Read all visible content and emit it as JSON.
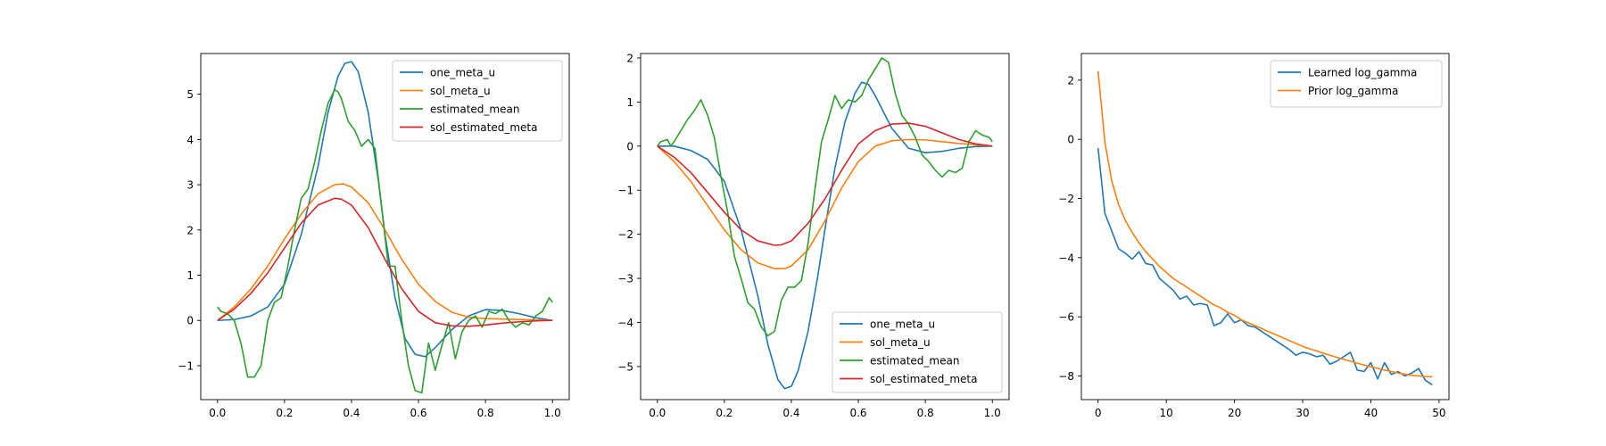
{
  "colors": {
    "blue": "#1f77b4",
    "orange": "#ff7f0e",
    "green": "#2ca02c",
    "red": "#d62728"
  },
  "chart_data": [
    {
      "type": "line",
      "title": "",
      "xlabel": "",
      "ylabel": "",
      "xlim": [
        -0.05,
        1.05
      ],
      "ylim": [
        -1.75,
        5.9
      ],
      "xticks": [
        0.0,
        0.2,
        0.4,
        0.6,
        0.8,
        1.0
      ],
      "xtick_labels": [
        "0.0",
        "0.2",
        "0.4",
        "0.6",
        "0.8",
        "1.0"
      ],
      "yticks": [
        -1,
        0,
        1,
        2,
        3,
        4,
        5
      ],
      "ytick_labels": [
        "−1",
        "0",
        "1",
        "2",
        "3",
        "4",
        "5"
      ],
      "legend_position": "top-right",
      "grid": false,
      "series": [
        {
          "name": "one_meta_u",
          "color": "#1f77b4",
          "x": [
            0,
            0.05,
            0.1,
            0.15,
            0.2,
            0.25,
            0.3,
            0.33,
            0.36,
            0.38,
            0.4,
            0.42,
            0.45,
            0.48,
            0.5,
            0.53,
            0.56,
            0.59,
            0.62,
            0.65,
            0.7,
            0.75,
            0.8,
            0.85,
            0.9,
            0.95,
            1.0
          ],
          "y": [
            0,
            0.02,
            0.1,
            0.3,
            0.8,
            1.9,
            3.4,
            4.6,
            5.4,
            5.68,
            5.72,
            5.5,
            4.6,
            3.1,
            1.9,
            0.5,
            -0.4,
            -0.75,
            -0.8,
            -0.6,
            -0.2,
            0.1,
            0.24,
            0.22,
            0.15,
            0.06,
            0
          ]
        },
        {
          "name": "sol_meta_u",
          "color": "#ff7f0e",
          "x": [
            0,
            0.05,
            0.1,
            0.15,
            0.2,
            0.25,
            0.3,
            0.35,
            0.375,
            0.4,
            0.45,
            0.5,
            0.55,
            0.6,
            0.65,
            0.7,
            0.75,
            0.8,
            0.85,
            0.9,
            0.95,
            1.0
          ],
          "y": [
            0,
            0.3,
            0.7,
            1.2,
            1.8,
            2.35,
            2.8,
            3.0,
            3.02,
            2.95,
            2.6,
            2.0,
            1.35,
            0.8,
            0.42,
            0.18,
            0.07,
            0.04,
            0.03,
            0.02,
            0.01,
            0
          ]
        },
        {
          "name": "estimated_mean",
          "color": "#2ca02c",
          "x": [
            0,
            0.01,
            0.03,
            0.05,
            0.07,
            0.09,
            0.11,
            0.13,
            0.15,
            0.17,
            0.19,
            0.21,
            0.23,
            0.25,
            0.27,
            0.29,
            0.31,
            0.33,
            0.35,
            0.36,
            0.37,
            0.39,
            0.41,
            0.43,
            0.45,
            0.47,
            0.49,
            0.51,
            0.53,
            0.55,
            0.57,
            0.59,
            0.61,
            0.63,
            0.65,
            0.67,
            0.69,
            0.71,
            0.73,
            0.75,
            0.77,
            0.79,
            0.81,
            0.83,
            0.85,
            0.87,
            0.89,
            0.91,
            0.93,
            0.95,
            0.97,
            0.99,
            1.0
          ],
          "y": [
            0.3,
            0.2,
            0.15,
            0.0,
            -0.5,
            -1.25,
            -1.25,
            -1.0,
            0.0,
            0.4,
            0.5,
            1.2,
            2.0,
            2.7,
            2.9,
            3.5,
            4.2,
            4.8,
            5.1,
            5.05,
            4.9,
            4.4,
            4.2,
            3.85,
            4.0,
            3.8,
            2.5,
            1.2,
            1.2,
            0.0,
            -1.0,
            -1.55,
            -1.6,
            -0.5,
            -1.1,
            -0.55,
            -0.05,
            -0.85,
            -0.25,
            0.0,
            0.1,
            -0.15,
            0.2,
            0.15,
            0.25,
            0.0,
            -0.15,
            -0.05,
            -0.1,
            0.1,
            0.2,
            0.5,
            0.4
          ]
        },
        {
          "name": "sol_estimated_meta",
          "color": "#d62728",
          "x": [
            0,
            0.05,
            0.1,
            0.15,
            0.2,
            0.25,
            0.3,
            0.35,
            0.37,
            0.4,
            0.45,
            0.5,
            0.55,
            0.6,
            0.65,
            0.7,
            0.75,
            0.8,
            0.85,
            0.9,
            0.95,
            1.0
          ],
          "y": [
            0,
            0.25,
            0.6,
            1.05,
            1.6,
            2.15,
            2.55,
            2.7,
            2.68,
            2.55,
            2.05,
            1.35,
            0.7,
            0.2,
            -0.05,
            -0.12,
            -0.13,
            -0.1,
            -0.06,
            -0.03,
            -0.01,
            0
          ]
        }
      ]
    },
    {
      "type": "line",
      "title": "",
      "xlabel": "",
      "ylabel": "",
      "xlim": [
        -0.05,
        1.05
      ],
      "ylim": [
        -5.75,
        2.1
      ],
      "xticks": [
        0.0,
        0.2,
        0.4,
        0.6,
        0.8,
        1.0
      ],
      "xtick_labels": [
        "0.0",
        "0.2",
        "0.4",
        "0.6",
        "0.8",
        "1.0"
      ],
      "yticks": [
        -5,
        -4,
        -3,
        -2,
        -1,
        0,
        1,
        2
      ],
      "ytick_labels": [
        "−5",
        "−4",
        "−3",
        "−2",
        "−1",
        "0",
        "1",
        "2"
      ],
      "legend_position": "bottom-right",
      "grid": false,
      "series": [
        {
          "name": "one_meta_u",
          "color": "#1f77b4",
          "x": [
            0,
            0.05,
            0.1,
            0.15,
            0.2,
            0.25,
            0.3,
            0.33,
            0.36,
            0.38,
            0.4,
            0.42,
            0.45,
            0.48,
            0.5,
            0.53,
            0.56,
            0.59,
            0.61,
            0.63,
            0.65,
            0.7,
            0.75,
            0.8,
            0.85,
            0.9,
            0.95,
            1.0
          ],
          "y": [
            0,
            0.0,
            -0.1,
            -0.3,
            -0.8,
            -1.9,
            -3.4,
            -4.5,
            -5.3,
            -5.5,
            -5.45,
            -5.1,
            -4.2,
            -2.9,
            -1.9,
            -0.5,
            0.55,
            1.2,
            1.45,
            1.4,
            1.15,
            0.4,
            -0.05,
            -0.15,
            -0.12,
            -0.05,
            -0.01,
            0
          ]
        },
        {
          "name": "sol_meta_u",
          "color": "#ff7f0e",
          "x": [
            0,
            0.05,
            0.1,
            0.15,
            0.2,
            0.25,
            0.3,
            0.35,
            0.38,
            0.4,
            0.45,
            0.5,
            0.55,
            0.6,
            0.65,
            0.7,
            0.75,
            0.8,
            0.85,
            0.9,
            0.95,
            1.0
          ],
          "y": [
            0,
            -0.35,
            -0.8,
            -1.35,
            -1.9,
            -2.35,
            -2.65,
            -2.78,
            -2.78,
            -2.72,
            -2.35,
            -1.7,
            -0.95,
            -0.35,
            0.0,
            0.12,
            0.15,
            0.14,
            0.1,
            0.06,
            0.03,
            0
          ]
        },
        {
          "name": "estimated_mean",
          "color": "#2ca02c",
          "x": [
            0,
            0.01,
            0.03,
            0.04,
            0.05,
            0.07,
            0.09,
            0.11,
            0.13,
            0.15,
            0.17,
            0.19,
            0.21,
            0.23,
            0.25,
            0.27,
            0.29,
            0.31,
            0.33,
            0.35,
            0.37,
            0.39,
            0.41,
            0.43,
            0.45,
            0.47,
            0.49,
            0.51,
            0.53,
            0.55,
            0.57,
            0.59,
            0.61,
            0.63,
            0.65,
            0.67,
            0.69,
            0.71,
            0.73,
            0.75,
            0.77,
            0.79,
            0.81,
            0.83,
            0.85,
            0.87,
            0.89,
            0.91,
            0.93,
            0.95,
            0.97,
            0.99,
            1.0
          ],
          "y": [
            0,
            0.1,
            0.15,
            0.0,
            0.1,
            0.35,
            0.6,
            0.8,
            1.05,
            0.7,
            0.2,
            -0.7,
            -1.5,
            -2.5,
            -3.0,
            -3.55,
            -3.7,
            -4.1,
            -4.3,
            -4.2,
            -3.5,
            -3.2,
            -3.2,
            -3.05,
            -2.2,
            -1.0,
            0.1,
            0.6,
            1.15,
            0.85,
            1.05,
            1.0,
            1.15,
            1.5,
            1.75,
            2.0,
            1.9,
            1.2,
            0.7,
            0.5,
            0.2,
            -0.2,
            -0.35,
            -0.55,
            -0.7,
            -0.55,
            -0.6,
            -0.5,
            0.1,
            0.35,
            0.25,
            0.2,
            0.1
          ]
        },
        {
          "name": "sol_estimated_meta",
          "color": "#d62728",
          "x": [
            0,
            0.05,
            0.1,
            0.15,
            0.2,
            0.25,
            0.3,
            0.35,
            0.37,
            0.4,
            0.45,
            0.5,
            0.55,
            0.6,
            0.65,
            0.7,
            0.75,
            0.8,
            0.85,
            0.9,
            0.95,
            1.0
          ],
          "y": [
            0,
            -0.25,
            -0.6,
            -1.05,
            -1.5,
            -1.9,
            -2.15,
            -2.25,
            -2.24,
            -2.15,
            -1.75,
            -1.2,
            -0.55,
            0.05,
            0.35,
            0.5,
            0.52,
            0.45,
            0.3,
            0.15,
            0.05,
            0
          ]
        }
      ]
    },
    {
      "type": "line",
      "title": "",
      "xlabel": "",
      "ylabel": "",
      "xlim": [
        -2.45,
        51.45
      ],
      "ylim": [
        -8.8,
        2.9
      ],
      "xticks": [
        0,
        10,
        20,
        30,
        40,
        50
      ],
      "xtick_labels": [
        "0",
        "10",
        "20",
        "30",
        "40",
        "50"
      ],
      "yticks": [
        -8,
        -6,
        -4,
        -2,
        0,
        2
      ],
      "ytick_labels": [
        "−8",
        "−6",
        "−4",
        "−2",
        "0",
        "2"
      ],
      "legend_position": "top-right",
      "grid": false,
      "series": [
        {
          "name": "Learned log_gamma",
          "color": "#1f77b4",
          "x": [
            0,
            1,
            2,
            3,
            4,
            5,
            6,
            7,
            8,
            9,
            10,
            11,
            12,
            13,
            14,
            15,
            16,
            17,
            18,
            19,
            20,
            21,
            22,
            23,
            24,
            25,
            26,
            27,
            28,
            29,
            30,
            31,
            32,
            33,
            34,
            35,
            36,
            37,
            38,
            39,
            40,
            41,
            42,
            43,
            44,
            45,
            46,
            47,
            48,
            49
          ],
          "y": [
            -0.3,
            -2.5,
            -3.1,
            -3.7,
            -3.85,
            -4.05,
            -3.8,
            -4.2,
            -4.25,
            -4.7,
            -4.9,
            -5.1,
            -5.4,
            -5.3,
            -5.6,
            -5.55,
            -5.6,
            -6.3,
            -6.2,
            -5.9,
            -6.2,
            -6.1,
            -6.3,
            -6.35,
            -6.5,
            -6.65,
            -6.8,
            -6.95,
            -7.1,
            -7.3,
            -7.2,
            -7.25,
            -7.35,
            -7.3,
            -7.6,
            -7.5,
            -7.35,
            -7.2,
            -7.8,
            -7.85,
            -7.55,
            -8.1,
            -7.55,
            -7.95,
            -7.85,
            -8.0,
            -7.9,
            -7.75,
            -8.15,
            -8.3
          ]
        },
        {
          "name": "Prior log_gamma",
          "color": "#ff7f0e",
          "x": [
            0,
            1,
            2,
            3,
            4,
            5,
            6,
            7,
            8,
            9,
            10,
            11,
            12,
            13,
            14,
            15,
            16,
            17,
            18,
            19,
            20,
            21,
            22,
            23,
            24,
            25,
            26,
            27,
            28,
            29,
            30,
            31,
            32,
            33,
            34,
            35,
            36,
            37,
            38,
            39,
            40,
            41,
            42,
            43,
            44,
            45,
            46,
            47,
            48,
            49
          ],
          "y": [
            2.3,
            -0.1,
            -1.4,
            -2.2,
            -2.75,
            -3.15,
            -3.5,
            -3.8,
            -4.05,
            -4.3,
            -4.5,
            -4.7,
            -4.85,
            -5.0,
            -5.15,
            -5.3,
            -5.45,
            -5.6,
            -5.7,
            -5.85,
            -5.95,
            -6.1,
            -6.2,
            -6.3,
            -6.4,
            -6.5,
            -6.6,
            -6.7,
            -6.8,
            -6.9,
            -7.0,
            -7.08,
            -7.15,
            -7.23,
            -7.3,
            -7.37,
            -7.44,
            -7.5,
            -7.57,
            -7.63,
            -7.69,
            -7.74,
            -7.8,
            -7.85,
            -7.9,
            -7.94,
            -7.98,
            -8.0,
            -8.02,
            -8.03
          ]
        }
      ]
    }
  ]
}
